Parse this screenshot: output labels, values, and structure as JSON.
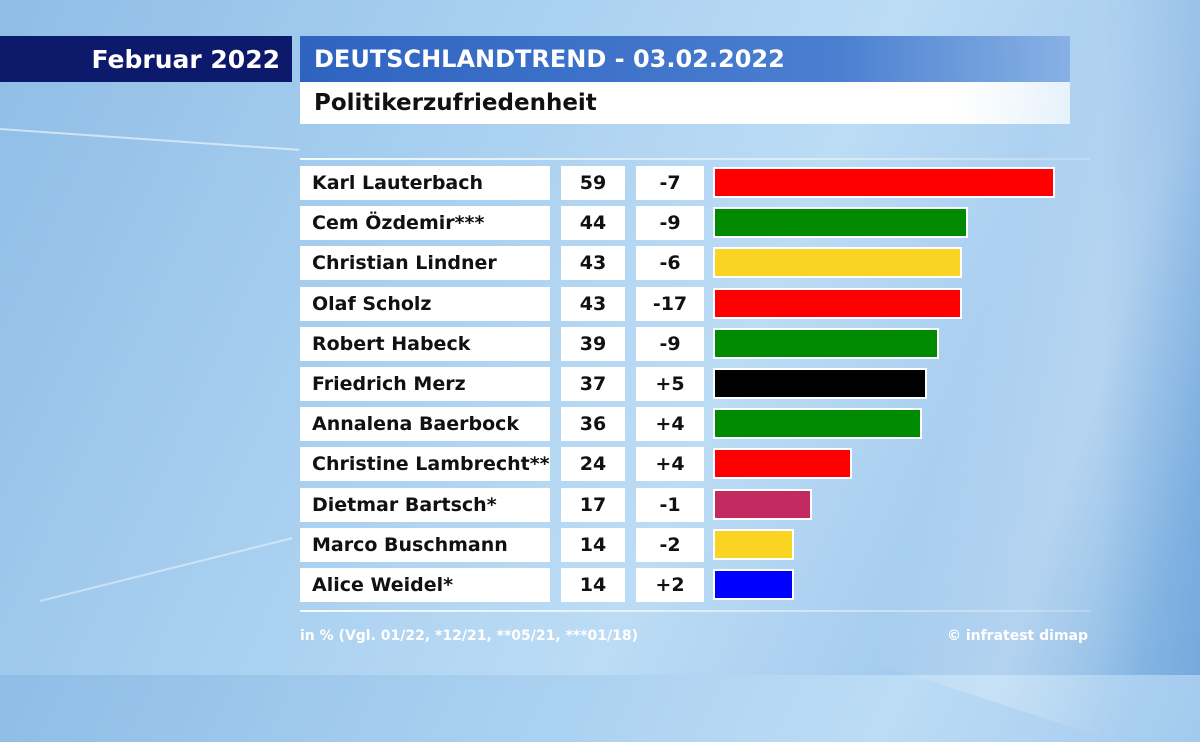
{
  "header": {
    "month": "Februar 2022",
    "title": "DEUTSCHLANDTREND - 03.02.2022",
    "subtitle": "Politikerzufriedenheit"
  },
  "footer": {
    "note": "in % (Vgl. 01/22, *12/21, **05/21, ***01/18)",
    "credit": "© infratest dimap"
  },
  "chart_data": {
    "type": "bar",
    "orientation": "horizontal",
    "title": "Politikerzufriedenheit",
    "unit": "in %",
    "xlim": [
      0,
      60
    ],
    "grid": false,
    "categories": [
      "Karl Lauterbach",
      "Cem Özdemir***",
      "Christian Lindner",
      "Olaf Scholz",
      "Robert Habeck",
      "Friedrich Merz",
      "Annalena Baerbock",
      "Christine Lambrecht**",
      "Dietmar Bartsch*",
      "Marco Buschmann",
      "Alice Weidel*"
    ],
    "values": [
      59,
      44,
      43,
      43,
      39,
      37,
      36,
      24,
      17,
      14,
      14
    ],
    "changes": [
      "-7",
      "-9",
      "-6",
      "-17",
      "-9",
      "+5",
      "+4",
      "+4",
      "-1",
      "-2",
      "+2"
    ],
    "colors": [
      "#ff0000",
      "#008a00",
      "#f9d423",
      "#ff0000",
      "#008a00",
      "#000000",
      "#008a00",
      "#ff0000",
      "#c42a62",
      "#f9d423",
      "#0000ff"
    ]
  }
}
